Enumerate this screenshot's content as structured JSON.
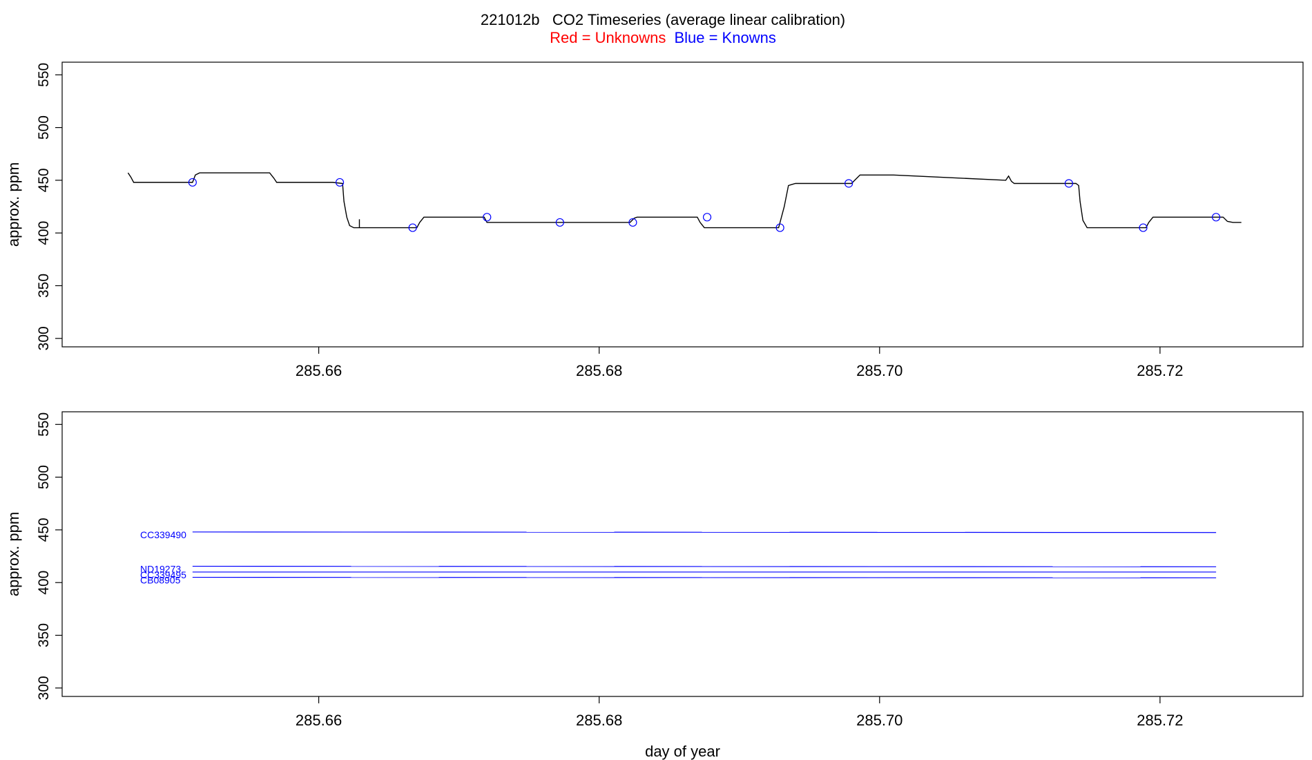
{
  "figure": {
    "title": "221012b   CO2 Timeseries (average linear calibration)",
    "subtitle_red": "Red = Unknowns",
    "subtitle_blue": "Blue = Knowns",
    "colors": {
      "red": "#ff0000",
      "blue": "#0000ff",
      "trace": "#000000",
      "axis": "#000000"
    }
  },
  "chart_data": [
    {
      "type": "line",
      "ylabel": "approx. ppm",
      "xlabel": "",
      "xlim": [
        285.6417,
        285.7302
      ],
      "ylim": [
        292,
        562
      ],
      "x_ticks": [
        285.66,
        285.68,
        285.7,
        285.72
      ],
      "x_tick_labels": [
        "285.66",
        "285.68",
        "285.70",
        "285.72"
      ],
      "y_ticks": [
        300,
        350,
        400,
        450,
        500,
        550
      ],
      "y_tick_labels": [
        "300",
        "350",
        "400",
        "450",
        "500",
        "550"
      ],
      "trace": {
        "color": "#000000",
        "x": [
          285.6464,
          285.6466,
          285.6468,
          285.6505,
          285.651,
          285.6512,
          285.6515,
          285.6565,
          285.6568,
          285.657,
          285.661,
          285.6617,
          285.6618,
          285.662,
          285.6622,
          285.6625,
          285.6628,
          285.663,
          285.664,
          285.667,
          285.6672,
          285.6675,
          285.6718,
          285.672,
          285.6725,
          285.6822,
          285.6825,
          285.6827,
          285.687,
          285.6872,
          285.6875,
          285.6925,
          285.6928,
          285.6932,
          285.6935,
          285.694,
          285.698,
          285.6983,
          285.6986,
          285.701,
          285.709,
          285.7092,
          285.7094,
          285.7096,
          285.7098,
          285.714,
          285.7142,
          285.7143,
          285.7145,
          285.7148,
          285.7152,
          285.719,
          285.7192,
          285.7195,
          285.7245,
          285.7248,
          285.7252,
          285.7258
        ],
        "y": [
          457,
          453,
          448,
          448,
          448,
          455,
          457,
          457,
          452,
          448,
          448,
          447,
          430,
          415,
          407,
          405,
          405,
          405,
          405,
          405,
          410,
          415,
          415,
          410,
          410,
          410,
          414,
          415,
          415,
          410,
          405,
          405,
          405,
          425,
          445,
          447,
          447,
          451,
          455,
          455,
          450,
          454,
          449,
          447,
          447,
          447,
          445,
          430,
          412,
          405,
          405,
          405,
          410,
          415,
          415,
          411,
          410,
          410
        ]
      },
      "markers": {
        "color": "#0000ff",
        "x": [
          285.651,
          285.6615,
          285.6667,
          285.672,
          285.6772,
          285.6824,
          285.6877,
          285.6929,
          285.6978,
          285.7135,
          285.7188,
          285.724
        ],
        "y": [
          448,
          448,
          405,
          415,
          410,
          410,
          415,
          405,
          447,
          447,
          405,
          415
        ]
      }
    },
    {
      "type": "line",
      "ylabel": "approx. ppm",
      "xlabel": "day of year",
      "xlim": [
        285.6417,
        285.7302
      ],
      "ylim": [
        292,
        562
      ],
      "x_ticks": [
        285.66,
        285.68,
        285.7,
        285.72
      ],
      "x_tick_labels": [
        "285.66",
        "285.68",
        "285.70",
        "285.72"
      ],
      "y_ticks": [
        300,
        350,
        400,
        450,
        500,
        550
      ],
      "y_tick_labels": [
        "300",
        "350",
        "400",
        "450",
        "500",
        "550"
      ],
      "series": [
        {
          "name": "CC339490",
          "color": "#0000ff",
          "x": [
            285.651,
            285.724
          ],
          "y": [
            448,
            447.5
          ]
        },
        {
          "name": "ND19273",
          "color": "#0000ff",
          "x": [
            285.651,
            285.724
          ],
          "y": [
            415.5,
            415
          ]
        },
        {
          "name": "CC339495",
          "color": "#0000ff",
          "x": [
            285.651,
            285.724
          ],
          "y": [
            410,
            410
          ]
        },
        {
          "name": "CB08905",
          "color": "#0000ff",
          "x": [
            285.651,
            285.724
          ],
          "y": [
            405,
            404.5
          ]
        }
      ]
    }
  ]
}
